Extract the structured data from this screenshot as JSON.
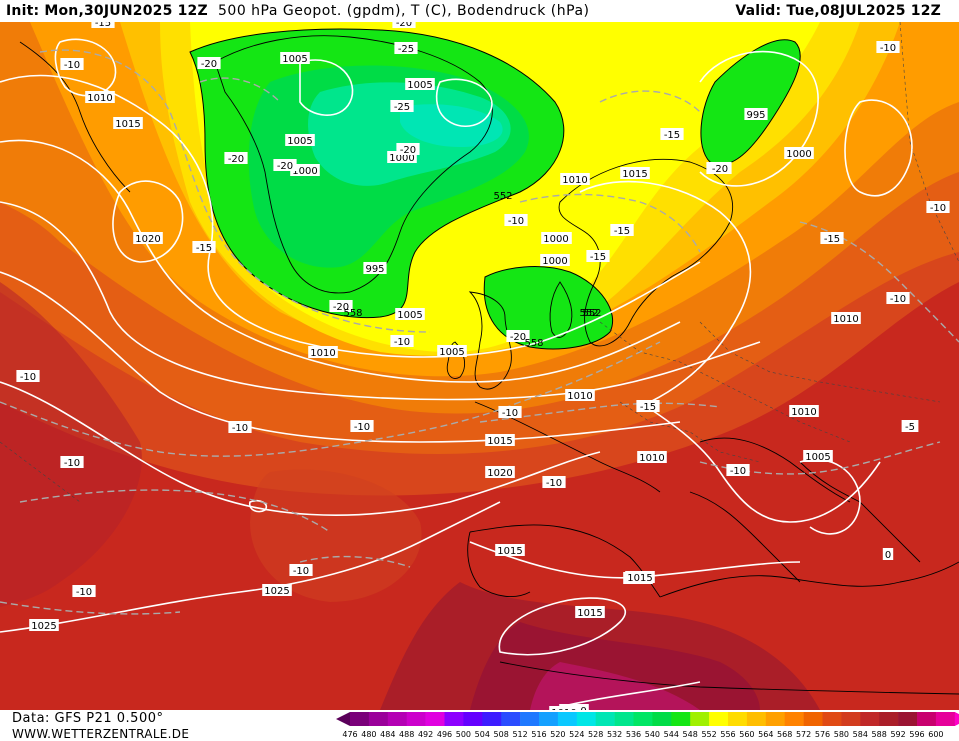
{
  "header": {
    "init": "Init: Mon,30JUN2025 12Z",
    "title": "500 hPa Geopot. (gpdm), T (C), Bodendruck (hPa)",
    "valid": "Valid: Tue,08JUL2025 12Z"
  },
  "footer": {
    "data_source": "Data: GFS P21 0.500°",
    "website": "WWW.WETTERZENTRALE.DE"
  },
  "legend": {
    "ticks": [
      "476",
      "480",
      "484",
      "488",
      "492",
      "496",
      "500",
      "504",
      "508",
      "512",
      "516",
      "520",
      "524",
      "528",
      "532",
      "536",
      "540",
      "544",
      "548",
      "552",
      "556",
      "560",
      "564",
      "568",
      "572",
      "576",
      "580",
      "584",
      "588",
      "592",
      "596",
      "600"
    ],
    "colors": [
      "#5a005a",
      "#7a007a",
      "#9a009a",
      "#b400b4",
      "#cc00cc",
      "#e000e0",
      "#8c00ff",
      "#6400ff",
      "#3c1cff",
      "#2a4cff",
      "#1e78ff",
      "#14a0ff",
      "#0ac8ff",
      "#00e6e6",
      "#00e6b4",
      "#00e68c",
      "#00e664",
      "#00dc46",
      "#14e614",
      "#a0f000",
      "#ffff00",
      "#ffdc00",
      "#ffbe00",
      "#ffa000",
      "#ff8200",
      "#f06400",
      "#e04a14",
      "#d23c1e",
      "#c02828",
      "#aa1e28",
      "#9a1432",
      "#c8006e",
      "#e6009a",
      "#ff00c8"
    ]
  },
  "pressure_labels": [
    "1005",
    "1005",
    "1005",
    "1000",
    "1000",
    "1000",
    "995",
    "1000",
    "1005",
    "1000",
    "1010",
    "1015",
    "1010",
    "1015",
    "1020",
    "1010",
    "1005",
    "1010",
    "1015",
    "1020",
    "1015",
    "1015",
    "1010",
    "1005",
    "1010",
    "1010",
    "1025",
    "1025",
    "1015",
    "1015",
    "1010",
    "995",
    "1000",
    "1010"
  ],
  "temp_labels": [
    "-15",
    "-10",
    "-20",
    "-20",
    "-25",
    "-25",
    "-20",
    "-20",
    "-20",
    "-15",
    "-15",
    "-20",
    "-15",
    "-15",
    "-20",
    "-10",
    "-20",
    "-10",
    "-10",
    "-10",
    "-10",
    "-15",
    "-10",
    "-10",
    "-10",
    "-10",
    "-10",
    "-10",
    "-15",
    "-10",
    "-5",
    "0",
    "-10",
    "-10",
    "-20",
    "-15"
  ],
  "geopot_labels": [
    "552",
    "558",
    "552",
    "558",
    "552"
  ]
}
